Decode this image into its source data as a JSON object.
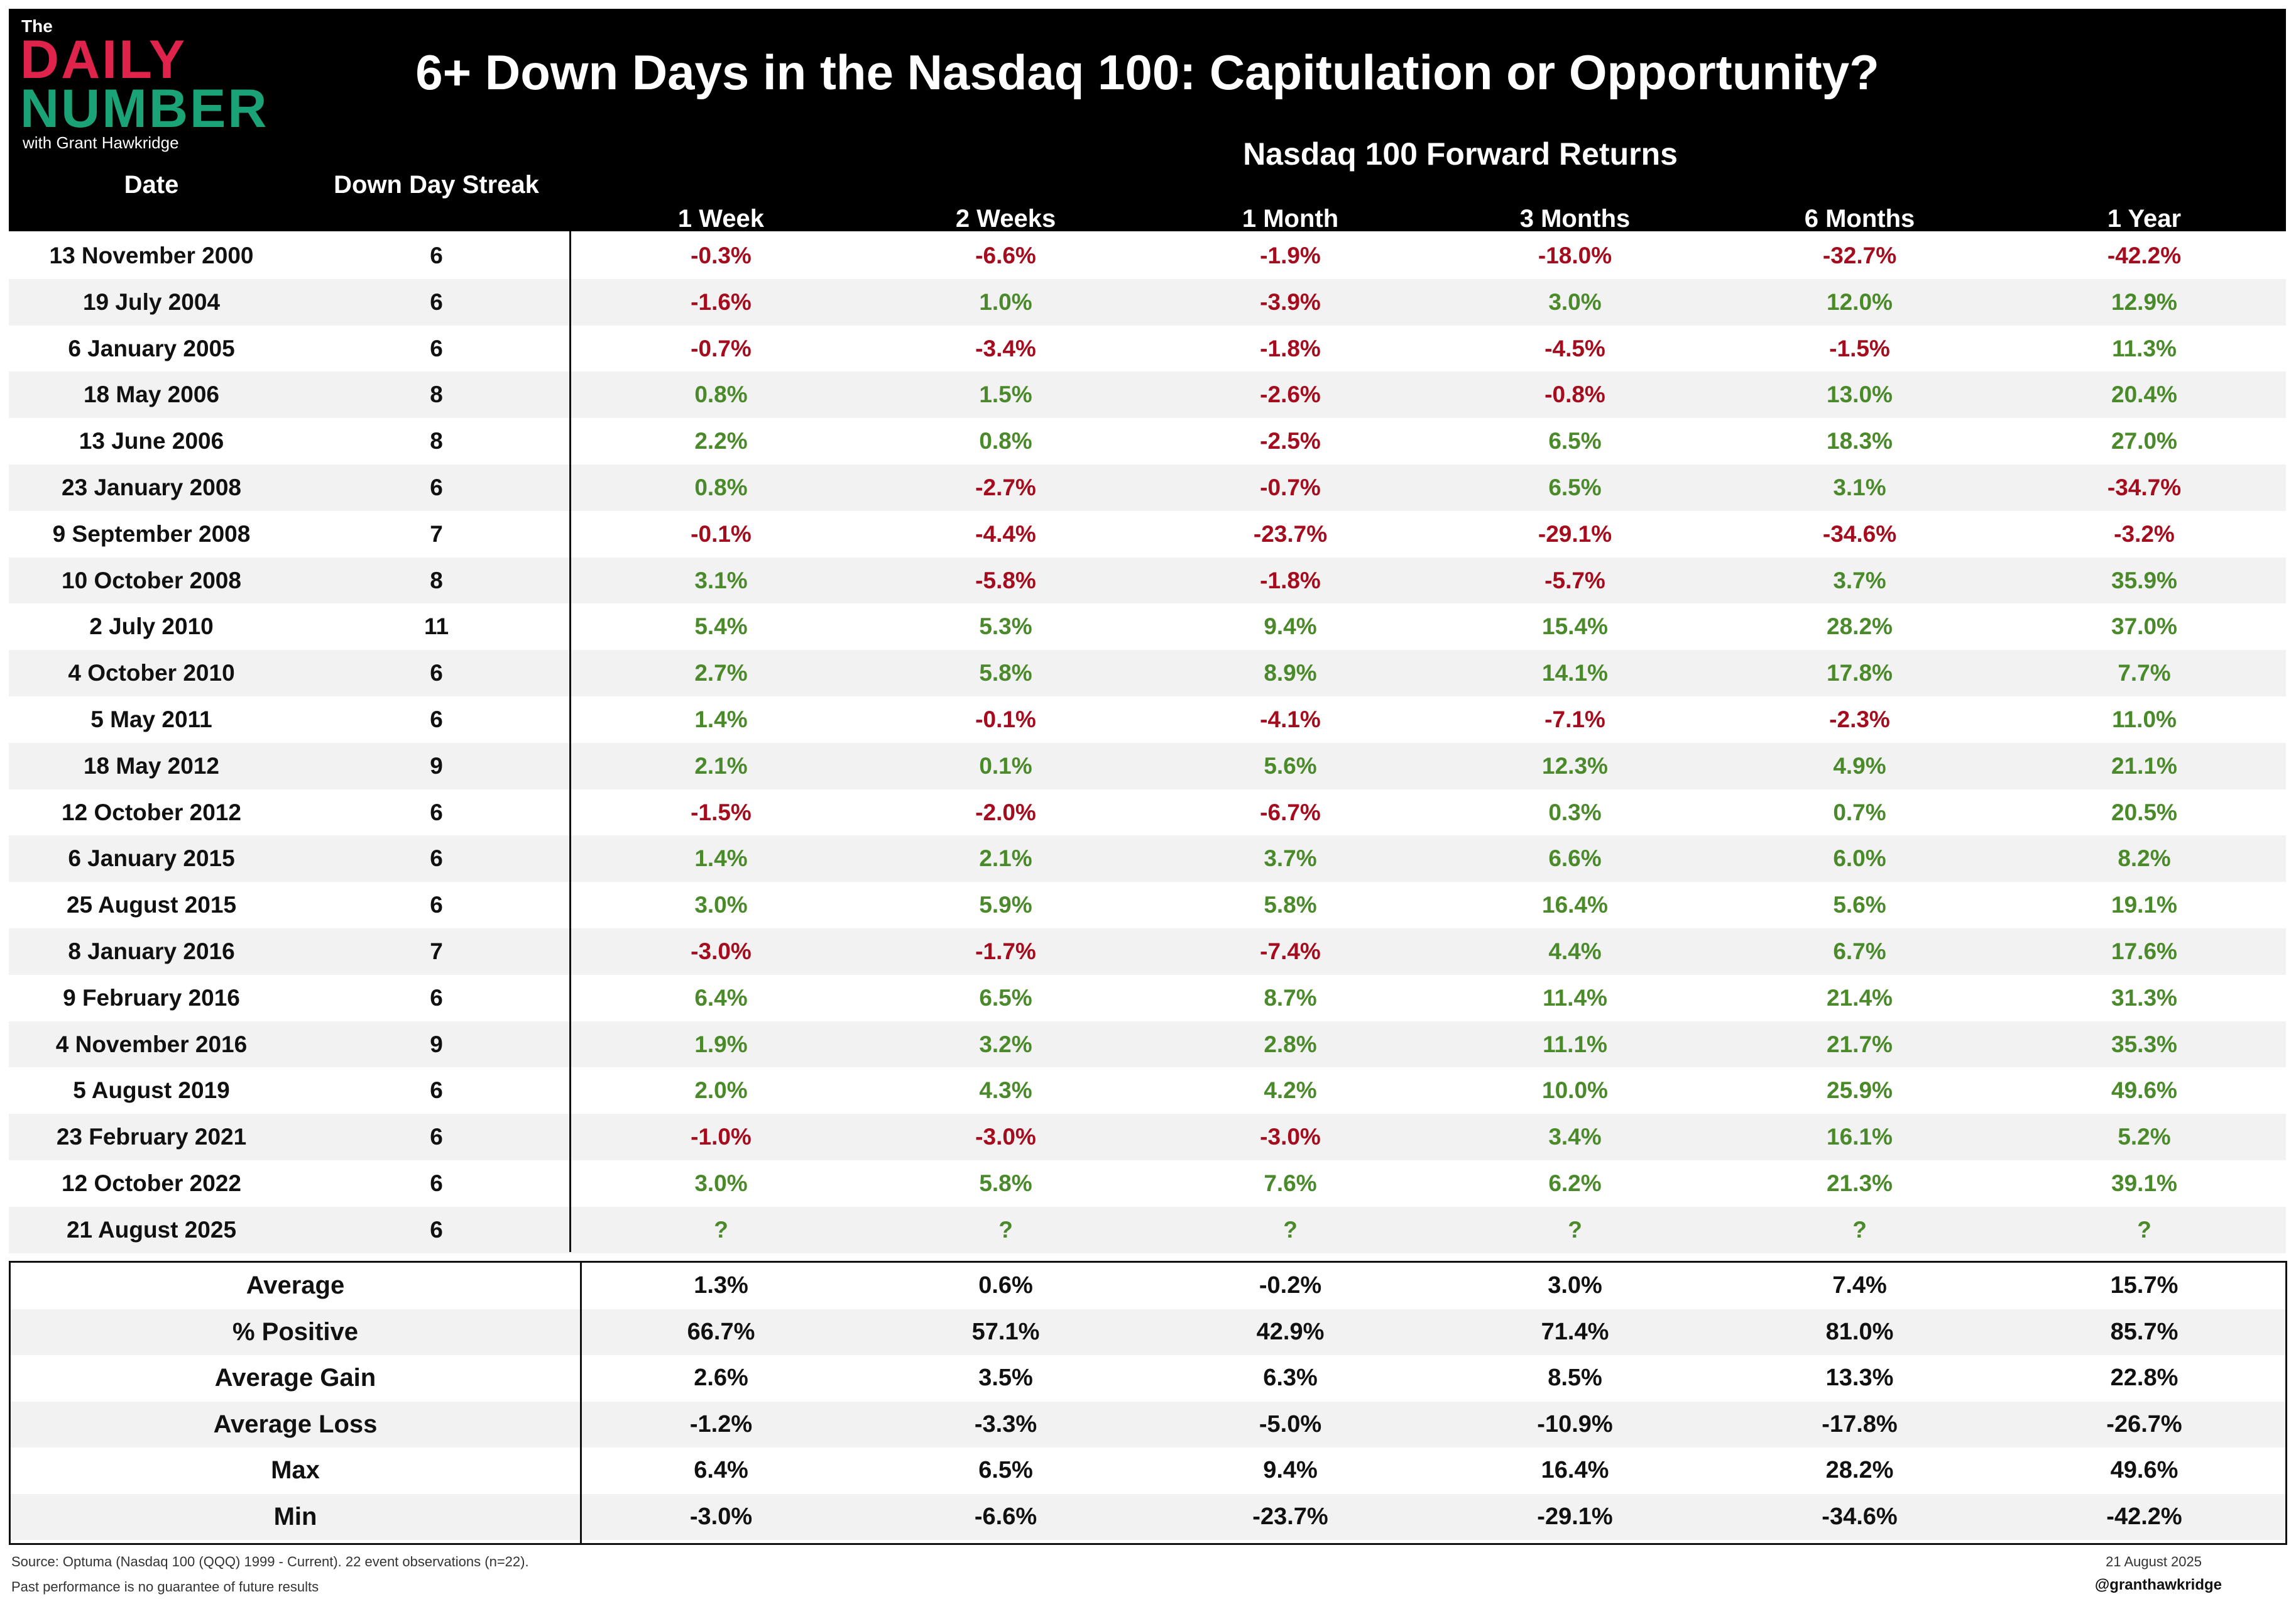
{
  "header": {
    "logo_the": "The",
    "logo_daily": "DAILY",
    "logo_number": "NUMBER",
    "logo_with": "with Grant Hawkridge",
    "title": "6+ Down Days in the Nasdaq 100: Capitulation or Opportunity?",
    "group_title": "Nasdaq 100 Forward Returns",
    "col_date": "Date",
    "col_streak": "Down Day Streak",
    "periods": [
      "1 Week",
      "2 Weeks",
      "1 Month",
      "3 Months",
      "6 Months",
      "1 Year"
    ]
  },
  "colors": {
    "negative": "#a50d1e",
    "positive": "#4a8a2a",
    "header_bg": "#000000",
    "stripe": "#f2f2f2"
  },
  "rows": [
    {
      "date": "13 November 2000",
      "streak": "6",
      "values": [
        "-0.3%",
        "-6.6%",
        "-1.9%",
        "-18.0%",
        "-32.7%",
        "-42.2%"
      ]
    },
    {
      "date": "19 July 2004",
      "streak": "6",
      "values": [
        "-1.6%",
        "1.0%",
        "-3.9%",
        "3.0%",
        "12.0%",
        "12.9%"
      ]
    },
    {
      "date": "6 January 2005",
      "streak": "6",
      "values": [
        "-0.7%",
        "-3.4%",
        "-1.8%",
        "-4.5%",
        "-1.5%",
        "11.3%"
      ]
    },
    {
      "date": "18 May 2006",
      "streak": "8",
      "values": [
        "0.8%",
        "1.5%",
        "-2.6%",
        "-0.8%",
        "13.0%",
        "20.4%"
      ]
    },
    {
      "date": "13 June 2006",
      "streak": "8",
      "values": [
        "2.2%",
        "0.8%",
        "-2.5%",
        "6.5%",
        "18.3%",
        "27.0%"
      ]
    },
    {
      "date": "23 January 2008",
      "streak": "6",
      "values": [
        "0.8%",
        "-2.7%",
        "-0.7%",
        "6.5%",
        "3.1%",
        "-34.7%"
      ]
    },
    {
      "date": "9 September 2008",
      "streak": "7",
      "values": [
        "-0.1%",
        "-4.4%",
        "-23.7%",
        "-29.1%",
        "-34.6%",
        "-3.2%"
      ]
    },
    {
      "date": "10 October 2008",
      "streak": "8",
      "values": [
        "3.1%",
        "-5.8%",
        "-1.8%",
        "-5.7%",
        "3.7%",
        "35.9%"
      ]
    },
    {
      "date": "2 July 2010",
      "streak": "11",
      "values": [
        "5.4%",
        "5.3%",
        "9.4%",
        "15.4%",
        "28.2%",
        "37.0%"
      ]
    },
    {
      "date": "4 October 2010",
      "streak": "6",
      "values": [
        "2.7%",
        "5.8%",
        "8.9%",
        "14.1%",
        "17.8%",
        "7.7%"
      ]
    },
    {
      "date": "5 May 2011",
      "streak": "6",
      "values": [
        "1.4%",
        "-0.1%",
        "-4.1%",
        "-7.1%",
        "-2.3%",
        "11.0%"
      ]
    },
    {
      "date": "18 May 2012",
      "streak": "9",
      "values": [
        "2.1%",
        "0.1%",
        "5.6%",
        "12.3%",
        "4.9%",
        "21.1%"
      ]
    },
    {
      "date": "12 October 2012",
      "streak": "6",
      "values": [
        "-1.5%",
        "-2.0%",
        "-6.7%",
        "0.3%",
        "0.7%",
        "20.5%"
      ]
    },
    {
      "date": "6 January 2015",
      "streak": "6",
      "values": [
        "1.4%",
        "2.1%",
        "3.7%",
        "6.6%",
        "6.0%",
        "8.2%"
      ]
    },
    {
      "date": "25 August 2015",
      "streak": "6",
      "values": [
        "3.0%",
        "5.9%",
        "5.8%",
        "16.4%",
        "5.6%",
        "19.1%"
      ]
    },
    {
      "date": "8 January 2016",
      "streak": "7",
      "values": [
        "-3.0%",
        "-1.7%",
        "-7.4%",
        "4.4%",
        "6.7%",
        "17.6%"
      ]
    },
    {
      "date": "9 February 2016",
      "streak": "6",
      "values": [
        "6.4%",
        "6.5%",
        "8.7%",
        "11.4%",
        "21.4%",
        "31.3%"
      ]
    },
    {
      "date": "4 November 2016",
      "streak": "9",
      "values": [
        "1.9%",
        "3.2%",
        "2.8%",
        "11.1%",
        "21.7%",
        "35.3%"
      ]
    },
    {
      "date": "5 August 2019",
      "streak": "6",
      "values": [
        "2.0%",
        "4.3%",
        "4.2%",
        "10.0%",
        "25.9%",
        "49.6%"
      ]
    },
    {
      "date": "23 February 2021",
      "streak": "6",
      "values": [
        "-1.0%",
        "-3.0%",
        "-3.0%",
        "3.4%",
        "16.1%",
        "5.2%"
      ]
    },
    {
      "date": "12 October 2022",
      "streak": "6",
      "values": [
        "3.0%",
        "5.8%",
        "7.6%",
        "6.2%",
        "21.3%",
        "39.1%"
      ]
    },
    {
      "date": "21 August 2025",
      "streak": "6",
      "values": [
        "?",
        "?",
        "?",
        "?",
        "?",
        "?"
      ]
    }
  ],
  "summary": [
    {
      "label": "Average",
      "values": [
        "1.3%",
        "0.6%",
        "-0.2%",
        "3.0%",
        "7.4%",
        "15.7%"
      ]
    },
    {
      "label": "% Positive",
      "values": [
        "66.7%",
        "57.1%",
        "42.9%",
        "71.4%",
        "81.0%",
        "85.7%"
      ]
    },
    {
      "label": "Average Gain",
      "values": [
        "2.6%",
        "3.5%",
        "6.3%",
        "8.5%",
        "13.3%",
        "22.8%"
      ]
    },
    {
      "label": "Average Loss",
      "values": [
        "-1.2%",
        "-3.3%",
        "-5.0%",
        "-10.9%",
        "-17.8%",
        "-26.7%"
      ]
    },
    {
      "label": "Max",
      "values": [
        "6.4%",
        "6.5%",
        "9.4%",
        "16.4%",
        "28.2%",
        "49.6%"
      ]
    },
    {
      "label": "Min",
      "values": [
        "-3.0%",
        "-6.6%",
        "-23.7%",
        "-29.1%",
        "-34.6%",
        "-42.2%"
      ]
    }
  ],
  "footer": {
    "source": "Source: Optuma (Nasdaq 100 (QQQ) 1999 - Current). 22 event observations (n=22).",
    "disclaimer": "Past performance is no guarantee of future results",
    "date": "21 August 2025",
    "handle": "@granthawkridge"
  }
}
